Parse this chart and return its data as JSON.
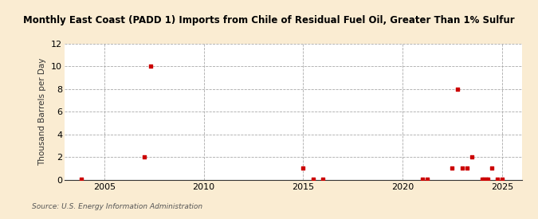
{
  "title": "Monthly East Coast (PADD 1) Imports from Chile of Residual Fuel Oil, Greater Than 1% Sulfur",
  "ylabel": "Thousand Barrels per Day",
  "source": "Source: U.S. Energy Information Administration",
  "background_color": "#faecd2",
  "plot_background_color": "#ffffff",
  "marker_color": "#cc0000",
  "xlim": [
    2003.0,
    2026.0
  ],
  "ylim": [
    0,
    12
  ],
  "yticks": [
    0,
    2,
    4,
    6,
    8,
    10,
    12
  ],
  "xticks": [
    2005,
    2010,
    2015,
    2020,
    2025
  ],
  "data_points": [
    [
      2003.83,
      0.05
    ],
    [
      2007.0,
      2.0
    ],
    [
      2007.33,
      10.0
    ],
    [
      2015.0,
      1.0
    ],
    [
      2015.5,
      0.05
    ],
    [
      2016.0,
      0.05
    ],
    [
      2021.0,
      0.05
    ],
    [
      2021.25,
      0.05
    ],
    [
      2022.5,
      1.0
    ],
    [
      2022.75,
      8.0
    ],
    [
      2023.0,
      1.0
    ],
    [
      2023.25,
      1.0
    ],
    [
      2023.5,
      2.0
    ],
    [
      2024.0,
      0.05
    ],
    [
      2024.1,
      0.05
    ],
    [
      2024.2,
      0.05
    ],
    [
      2024.3,
      0.05
    ],
    [
      2024.5,
      1.0
    ],
    [
      2024.75,
      0.05
    ],
    [
      2025.0,
      0.05
    ]
  ]
}
